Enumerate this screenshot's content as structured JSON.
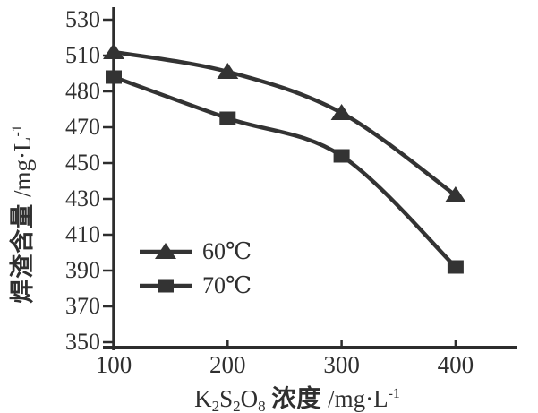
{
  "chart_data": {
    "type": "line",
    "title": "",
    "xlabel": "K₂S₂O₈ 浓度 /mg·L⁻¹",
    "ylabel": "焊渣含量 /mg·L⁻¹",
    "x": [
      100,
      200,
      300,
      400
    ],
    "series": [
      {
        "name": "60℃",
        "marker": "triangle",
        "values": [
          512,
          501,
          478,
          432
        ]
      },
      {
        "name": "70℃",
        "marker": "square",
        "values": [
          498,
          475,
          454,
          392
        ]
      }
    ],
    "x_tick_labels": [
      "100",
      "200",
      "300",
      "400"
    ],
    "y_tick_labels": [
      "530",
      "510",
      "480",
      "470",
      "450",
      "430",
      "410",
      "390",
      "370",
      "350"
    ],
    "xlim": [
      100,
      450
    ],
    "ylim": [
      350,
      530
    ],
    "grid": false,
    "legend": {
      "position": "inside-lower-left",
      "entries": [
        {
          "label": "60℃",
          "marker": "triangle"
        },
        {
          "label": "70℃",
          "marker": "square"
        }
      ]
    },
    "xlabel_parts": [
      {
        "t": "K"
      },
      {
        "t": "2",
        "s": "sub"
      },
      {
        "t": "S"
      },
      {
        "t": "2",
        "s": "sub"
      },
      {
        "t": "O"
      },
      {
        "t": "8",
        "s": "sub"
      },
      {
        "t": " "
      },
      {
        "t": "浓度"
      },
      {
        "t": " /mg·L"
      },
      {
        "t": "-1",
        "s": "sup"
      }
    ],
    "ylabel_parts": [
      {
        "t": "焊渣含量"
      },
      {
        "t": " /mg·L"
      },
      {
        "t": "-1",
        "s": "sup"
      }
    ],
    "colors": {
      "line": "#333333",
      "marker": "#333333",
      "axis": "#2d2d2d",
      "text": "#2f2f2f",
      "background": "#ffffff"
    }
  }
}
